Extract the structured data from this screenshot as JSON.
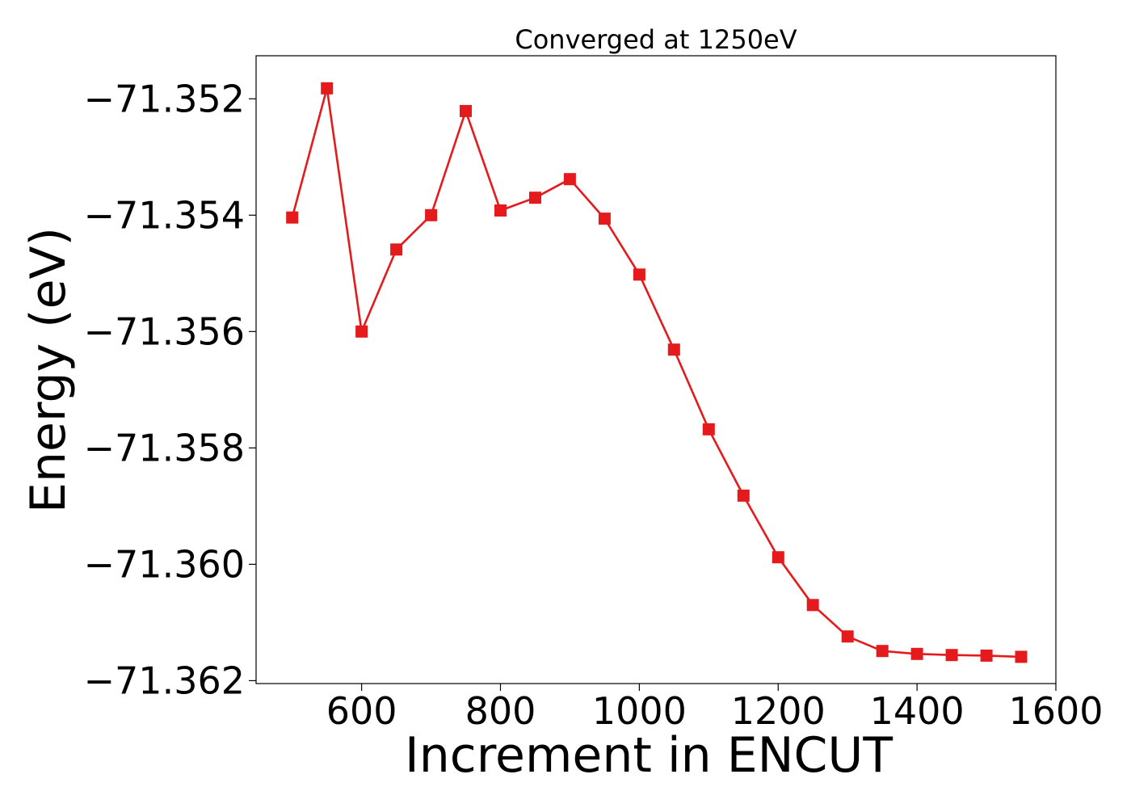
{
  "chart_data": {
    "type": "line",
    "title": "Converged at 1250eV",
    "xlabel": "Increment in ENCUT",
    "ylabel": "Energy (eV)",
    "xlim": [
      448,
      1600
    ],
    "ylim": [
      -71.36205,
      -71.35126
    ],
    "x_ticks": [
      600,
      800,
      1000,
      1200,
      1400,
      1600
    ],
    "x_tick_labels": [
      "600",
      "800",
      "1000",
      "1200",
      "1400",
      "1600"
    ],
    "y_ticks": [
      -71.352,
      -71.354,
      -71.356,
      -71.358,
      -71.36,
      -71.362
    ],
    "y_tick_labels": [
      "−71.352",
      "−71.354",
      "−71.356",
      "−71.358",
      "−71.360",
      "−71.362"
    ],
    "grid": false,
    "series": [
      {
        "color": "#e41a1c",
        "marker": "square",
        "x": [
          500,
          550,
          600,
          650,
          700,
          750,
          800,
          850,
          900,
          950,
          1000,
          1050,
          1100,
          1150,
          1200,
          1250,
          1300,
          1350,
          1400,
          1450,
          1500,
          1550
        ],
        "y": [
          -71.35404,
          -71.35182,
          -71.356,
          -71.35459,
          -71.354,
          -71.35221,
          -71.35392,
          -71.3537,
          -71.35338,
          -71.35406,
          -71.35502,
          -71.35631,
          -71.35768,
          -71.35882,
          -71.35988,
          -71.3607,
          -71.36124,
          -71.36149,
          -71.36154,
          -71.36156,
          -71.36157,
          -71.36159
        ]
      }
    ]
  }
}
